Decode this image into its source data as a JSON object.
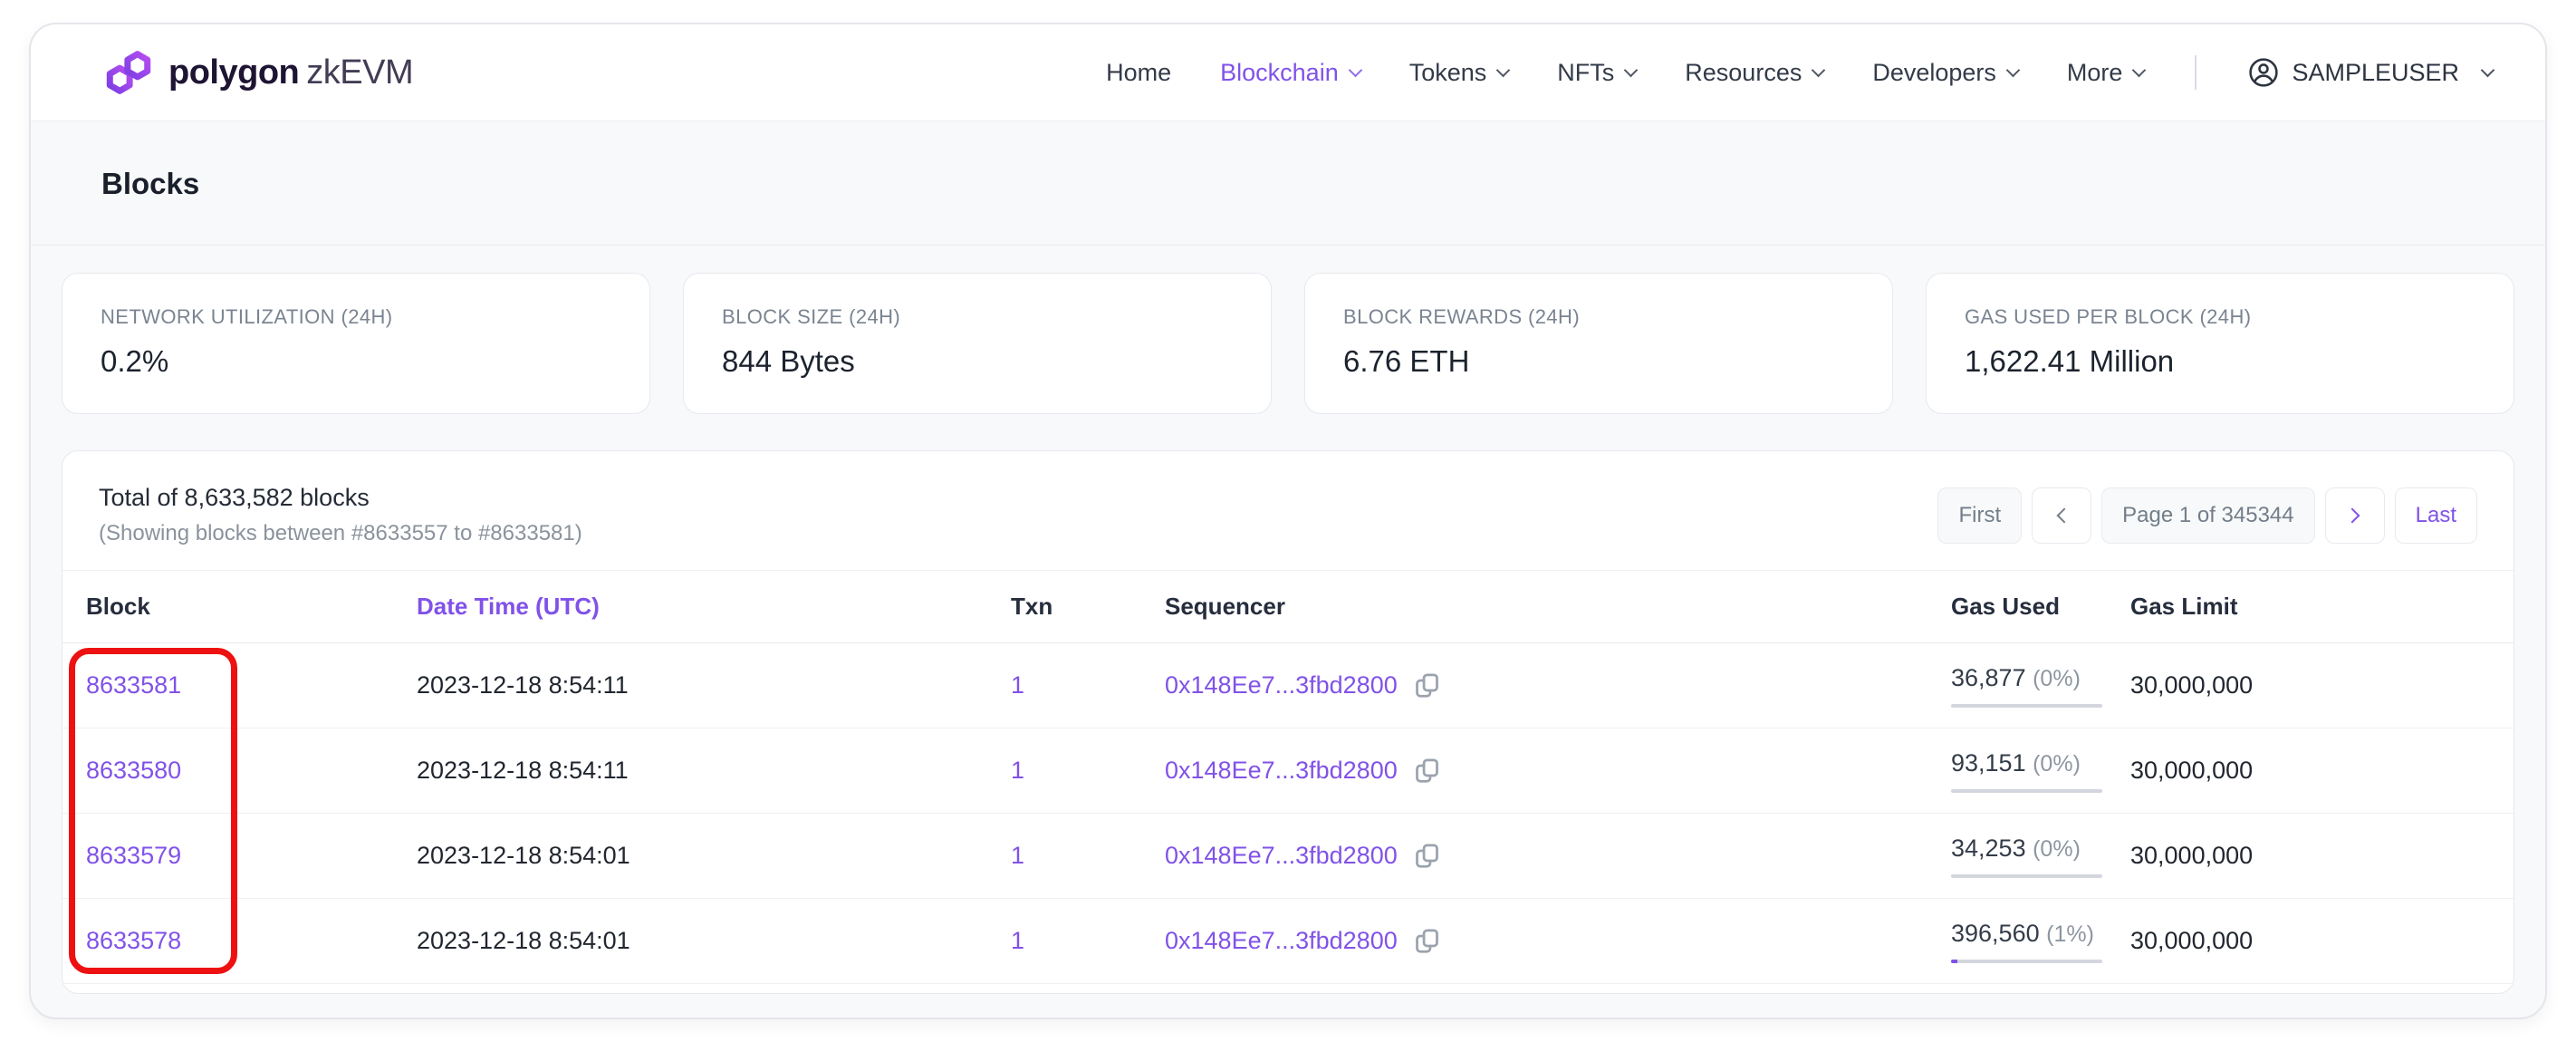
{
  "brand": {
    "name_bold": "polygon",
    "name_light": "zkEVM"
  },
  "nav": {
    "items": [
      {
        "label": "Home",
        "active": false,
        "dropdown": false
      },
      {
        "label": "Blockchain",
        "active": true,
        "dropdown": true
      },
      {
        "label": "Tokens",
        "active": false,
        "dropdown": true
      },
      {
        "label": "NFTs",
        "active": false,
        "dropdown": true
      },
      {
        "label": "Resources",
        "active": false,
        "dropdown": true
      },
      {
        "label": "Developers",
        "active": false,
        "dropdown": true
      },
      {
        "label": "More",
        "active": false,
        "dropdown": true
      }
    ],
    "user": {
      "label": "SAMPLEUSER",
      "icon": "user-circle-icon",
      "dropdown_icon": "chevron-down-icon"
    }
  },
  "page": {
    "title": "Blocks"
  },
  "stats": [
    {
      "label": "NETWORK UTILIZATION (24H)",
      "value": "0.2%"
    },
    {
      "label": "BLOCK SIZE (24H)",
      "value": "844 Bytes"
    },
    {
      "label": "BLOCK REWARDS (24H)",
      "value": "6.76 ETH"
    },
    {
      "label": "GAS USED PER BLOCK (24H)",
      "value": "1,622.41 Million"
    }
  ],
  "table": {
    "title": "Total of 8,633,582 blocks",
    "subtitle": "(Showing blocks between #8633557 to #8633581)",
    "pagination": {
      "first": "First",
      "prev_icon": "chevron-left-icon",
      "page": "Page 1 of 345344",
      "next_icon": "chevron-right-icon",
      "last": "Last"
    },
    "columns": [
      "Block",
      "Date Time (UTC)",
      "Txn",
      "Sequencer",
      "Gas Used",
      "Gas Limit"
    ],
    "rows": [
      {
        "block": "8633581",
        "datetime": "2023-12-18 8:54:11",
        "txn": "1",
        "sequencer": "0x148Ee7...3fbd2800",
        "copy_icon": "copy-icon",
        "gas_used": "36,877",
        "gas_used_pct": "(0%)",
        "pct_value": 0,
        "gas_limit": "30,000,000"
      },
      {
        "block": "8633580",
        "datetime": "2023-12-18 8:54:11",
        "txn": "1",
        "sequencer": "0x148Ee7...3fbd2800",
        "copy_icon": "copy-icon",
        "gas_used": "93,151",
        "gas_used_pct": "(0%)",
        "pct_value": 0,
        "gas_limit": "30,000,000"
      },
      {
        "block": "8633579",
        "datetime": "2023-12-18 8:54:01",
        "txn": "1",
        "sequencer": "0x148Ee7...3fbd2800",
        "copy_icon": "copy-icon",
        "gas_used": "34,253",
        "gas_used_pct": "(0%)",
        "pct_value": 0,
        "gas_limit": "30,000,000"
      },
      {
        "block": "8633578",
        "datetime": "2023-12-18 8:54:01",
        "txn": "1",
        "sequencer": "0x148Ee7...3fbd2800",
        "copy_icon": "copy-icon",
        "gas_used": "396,560",
        "gas_used_pct": "(1%)",
        "pct_value": 1,
        "gas_limit": "30,000,000"
      }
    ]
  },
  "annotation": {
    "shape": "red-rounded-rectangle",
    "target": "block-number-column",
    "color": "#ee1111"
  },
  "colors": {
    "accent_purple": "#8152e8",
    "annotation_red": "#ee1111",
    "content_bg": "#f8f9fa"
  }
}
